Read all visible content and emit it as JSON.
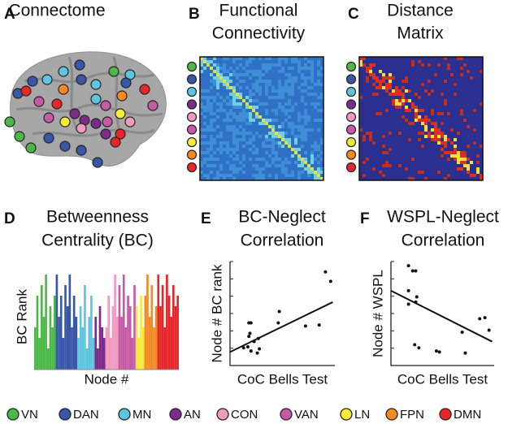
{
  "panels": [
    {
      "letter": "A",
      "title": [
        "Connectome"
      ]
    },
    {
      "letter": "B",
      "title": [
        "Functional",
        "Connectivity"
      ]
    },
    {
      "letter": "C",
      "title": [
        "Distance",
        "Matrix"
      ]
    }
  ],
  "networks": [
    {
      "name": "VN",
      "color": "#4db848"
    },
    {
      "name": "DAN",
      "color": "#3a57a7"
    },
    {
      "name": "MN",
      "color": "#5fc4de"
    },
    {
      "name": "AN",
      "color": "#7b2c8b"
    },
    {
      "name": "CON",
      "color": "#f09ac0"
    },
    {
      "name": "VAN",
      "color": "#c75aa6"
    },
    {
      "name": "LN",
      "color": "#f5ec3a"
    },
    {
      "name": "FPN",
      "color": "#f58a24"
    },
    {
      "name": "DMN",
      "color": "#e8262a"
    }
  ],
  "chart_data": [
    {
      "type": "bar",
      "panel": "D",
      "title": [
        "Betweenness",
        "Centrality (BC)"
      ],
      "ylabel": "BC Rank",
      "xlabel": "Node #",
      "ylim": [
        0,
        10
      ],
      "series": [
        {
          "color": "#4db848",
          "values": [
            4,
            7,
            3,
            8,
            5,
            9,
            2,
            6,
            4,
            7
          ]
        },
        {
          "color": "#3a57a7",
          "values": [
            9,
            5,
            7,
            3,
            8,
            6,
            9,
            4,
            7,
            5
          ]
        },
        {
          "color": "#5fc4de",
          "values": [
            3,
            6,
            4,
            8,
            2,
            5,
            7,
            3
          ]
        },
        {
          "color": "#7b2c8b",
          "values": [
            5,
            2,
            6,
            4,
            3
          ]
        },
        {
          "color": "#f09ac0",
          "values": [
            4,
            7,
            3,
            6,
            9,
            5
          ]
        },
        {
          "color": "#c75aa6",
          "values": [
            8,
            5,
            9,
            4,
            7,
            6,
            3,
            8
          ]
        },
        {
          "color": "#f5ec3a",
          "values": [
            6,
            3,
            7,
            4
          ]
        },
        {
          "color": "#f58a24",
          "values": [
            7,
            9,
            5,
            8,
            4,
            6
          ]
        },
        {
          "color": "#e8262a",
          "values": [
            9,
            6,
            8,
            4,
            9,
            7,
            5,
            8,
            6,
            7
          ]
        }
      ]
    },
    {
      "type": "scatter",
      "panel": "E",
      "title": [
        "BC-Neglect",
        "Correlation"
      ],
      "ylabel": "Node # BC rank",
      "xlabel": "CoC Bells Test",
      "xlim": [
        0,
        10
      ],
      "ylim": [
        0,
        10
      ],
      "x": [
        9.1,
        9.6,
        7.2,
        8.5,
        4.6,
        4.7,
        1.8,
        2.0,
        1.9,
        1.8,
        2.3,
        2.7,
        1.3,
        2.0,
        2.6,
        1.7,
        2.8
      ],
      "y": [
        9.0,
        8.1,
        3.8,
        3.9,
        4.1,
        5.2,
        4.1,
        4.1,
        3.1,
        2.8,
        2.3,
        2.6,
        1.7,
        1.4,
        1.2,
        1.8,
        1.6
      ],
      "trend": {
        "x": [
          0,
          9.8
        ],
        "y": [
          1.3,
          6.1
        ]
      }
    },
    {
      "type": "scatter",
      "panel": "F",
      "title": [
        "WSPL-Neglect",
        "Correlation"
      ],
      "ylabel": "Node # WSPL",
      "xlabel": "CoC Bells Test",
      "xlim": [
        0,
        10
      ],
      "ylim": [
        0,
        10
      ],
      "x": [
        1.7,
        2.1,
        2.4,
        1.7,
        2.5,
        2.4,
        1.7,
        2.3,
        2.7,
        4.4,
        4.7,
        6.9,
        7.2,
        8.6,
        9.1,
        9.5
      ],
      "y": [
        9.6,
        9.1,
        9.1,
        7.2,
        6.6,
        6.1,
        5.9,
        2.0,
        1.7,
        1.4,
        1.3,
        3.2,
        1.2,
        4.5,
        4.6,
        3.4
      ],
      "trend": {
        "x": [
          0,
          9.8
        ],
        "y": [
          7.2,
          2.3
        ]
      }
    }
  ]
}
